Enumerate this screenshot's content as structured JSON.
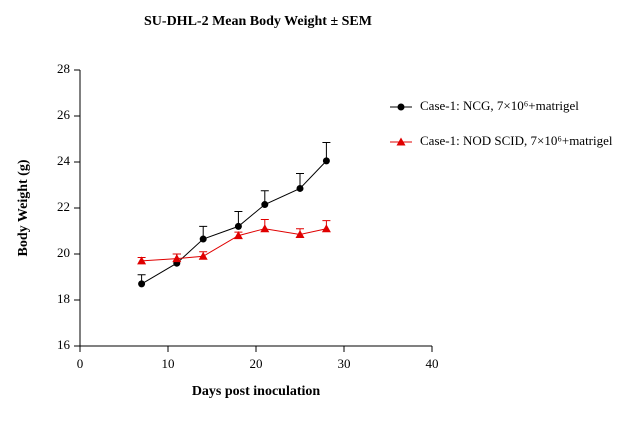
{
  "chart_data": {
    "type": "line",
    "title": "SU-DHL-2 Mean Body Weight ± SEM",
    "xlabel": "Days post inoculation",
    "ylabel": "Body Weight (g)",
    "x": [
      7,
      11,
      14,
      18,
      21,
      25,
      28
    ],
    "series": [
      {
        "name": "Case-1: NCG, 7×10⁶+matrigel",
        "color": "#000000",
        "marker": "circle",
        "values": [
          18.7,
          19.6,
          20.65,
          21.2,
          22.15,
          22.85,
          24.05
        ],
        "errors": [
          0.4,
          0.4,
          0.55,
          0.65,
          0.6,
          0.65,
          0.8
        ]
      },
      {
        "name": "Case-1: NOD SCID, 7×10⁶+matrigel",
        "color": "#e00000",
        "marker": "triangle",
        "values": [
          19.7,
          19.8,
          19.9,
          20.8,
          21.1,
          20.85,
          21.1
        ],
        "errors": [
          0.15,
          0.2,
          0.2,
          0.15,
          0.4,
          0.25,
          0.35
        ]
      }
    ],
    "xlim": [
      0,
      40
    ],
    "xticks": [
      0,
      10,
      20,
      30,
      40
    ],
    "ylim": [
      16,
      28
    ],
    "yticks": [
      16,
      18,
      20,
      22,
      24,
      26,
      28
    ]
  }
}
